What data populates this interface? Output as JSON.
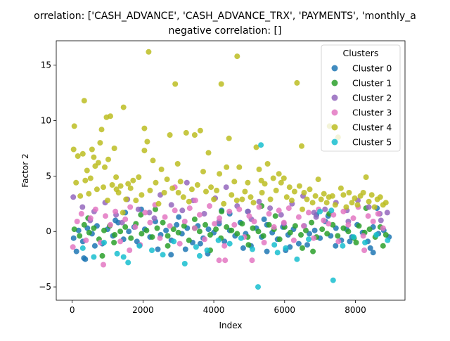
{
  "chart_data": {
    "type": "scatter",
    "title_line1": "orrelation: ['CASH_ADVANCE', 'CASH_ADVANCE_TRX', 'PAYMENTS', 'monthly_a",
    "title_line2": "negative correlation: []",
    "xlabel": "Index",
    "ylabel": "Factor 2",
    "xlim": [
      -450,
      9400
    ],
    "ylim": [
      -6.2,
      17.2
    ],
    "xticks": [
      0,
      2000,
      4000,
      6000,
      8000
    ],
    "yticks": [
      -5,
      0,
      5,
      10,
      15
    ],
    "grid": false,
    "legend": {
      "title": "Clusters",
      "placement": "top-right",
      "entries": [
        "Cluster 0",
        "Cluster 1",
        "Cluster 2",
        "Cluster 3",
        "Cluster 4",
        "Cluster 5"
      ]
    },
    "colors": {
      "Cluster 0": "#1f77b4",
      "Cluster 1": "#2ca02c",
      "Cluster 2": "#9467bd",
      "Cluster 3": "#e377c2",
      "Cluster 4": "#bcbd22",
      "Cluster 5": "#17becf"
    },
    "series": [
      {
        "name": "Cluster 0",
        "x": [
          40,
          180,
          300,
          430,
          560,
          700,
          850,
          1000,
          1150,
          1300,
          1450,
          1600,
          1750,
          1900,
          2050,
          2200,
          2350,
          2500,
          2650,
          2800,
          2950,
          3100,
          3250,
          3400,
          3550,
          3700,
          3850,
          4000,
          4150,
          4300,
          4450,
          4600,
          4750,
          4900,
          5050,
          5200,
          5350,
          5500,
          5650,
          5800,
          5950,
          6100,
          6250,
          6400,
          6550,
          6700,
          6850,
          7000,
          7150,
          7300,
          7450,
          7600,
          7750,
          7900,
          8050,
          8200,
          8350,
          8500,
          8650,
          8800,
          8950,
          120,
          640,
          1220,
          1830,
          2420,
          3010,
          3620,
          4220,
          4830,
          5420,
          6030,
          6640,
          7230,
          7840,
          8420,
          330,
          1500,
          2790,
          3830,
          4960,
          6150,
          7440,
          8610,
          370,
          1950,
          3200,
          4450,
          5500,
          6900,
          8500
        ],
        "y": [
          -0.6,
          0.1,
          -0.9,
          0.3,
          -0.2,
          0.5,
          -1.1,
          0.2,
          -0.4,
          0.8,
          -0.7,
          0.0,
          0.4,
          -1.2,
          0.2,
          -0.5,
          0.9,
          -0.3,
          0.1,
          -0.8,
          0.6,
          -0.2,
          0.3,
          -1.0,
          0.5,
          -0.6,
          0.2,
          -0.1,
          0.7,
          -0.9,
          0.1,
          -0.4,
          0.8,
          -0.2,
          -1.3,
          0.3,
          -0.5,
          0.6,
          -0.1,
          -0.7,
          0.4,
          -0.3,
          0.2,
          -1.1,
          0.5,
          -0.2,
          0.1,
          -0.6,
          0.9,
          -0.4,
          0.3,
          -0.8,
          0.2,
          -0.5,
          0.6,
          -0.1,
          -0.9,
          0.4,
          -0.2,
          0.1,
          -0.5,
          -1.8,
          -1.3,
          1.0,
          -0.9,
          -1.6,
          1.3,
          -1.1,
          1.9,
          -1.5,
          1.1,
          -1.7,
          -1.2,
          1.4,
          -0.9,
          -1.5,
          -2.4,
          1.7,
          -2.1,
          -2.0,
          1.8,
          -1.4,
          -1.3,
          2.1,
          -2.5,
          2.0,
          -1.6,
          1.6,
          -1.8,
          1.5,
          -1.9
        ]
      },
      {
        "name": "Cluster 1",
        "x": [
          60,
          210,
          340,
          480,
          610,
          760,
          900,
          1060,
          1200,
          1360,
          1500,
          1660,
          1800,
          1960,
          2100,
          2260,
          2400,
          2560,
          2700,
          2860,
          3000,
          3160,
          3300,
          3460,
          3600,
          3760,
          3900,
          4060,
          4200,
          4360,
          4500,
          4660,
          4800,
          4960,
          5100,
          5260,
          5400,
          5560,
          5700,
          5860,
          6000,
          6160,
          6300,
          6460,
          6600,
          6760,
          6900,
          7060,
          7200,
          7360,
          7500,
          7660,
          7800,
          7960,
          8100,
          8260,
          8400,
          8560,
          8700,
          8860,
          450,
          1180,
          1940,
          2700,
          3460,
          4220,
          4980,
          5740,
          6500,
          7260,
          8020,
          8780,
          850,
          2350,
          3900,
          5350,
          6800,
          8300
        ],
        "y": [
          0.2,
          -0.4,
          0.6,
          -0.1,
          0.3,
          -0.7,
          0.1,
          0.5,
          -0.3,
          0.0,
          0.4,
          -0.6,
          0.7,
          -0.2,
          0.1,
          -0.5,
          0.3,
          0.8,
          -0.4,
          0.2,
          -0.1,
          0.5,
          -0.8,
          0.3,
          0.0,
          0.6,
          -0.3,
          0.2,
          -0.6,
          0.4,
          0.1,
          -0.2,
          0.7,
          -0.5,
          0.3,
          0.0,
          -0.4,
          0.6,
          0.2,
          -0.7,
          0.4,
          -0.1,
          0.5,
          -0.3,
          0.1,
          0.8,
          -0.5,
          0.2,
          -0.2,
          0.6,
          -0.4,
          0.3,
          0.0,
          -0.6,
          0.5,
          -0.1,
          0.2,
          -0.5,
          0.4,
          -0.3,
          1.2,
          -1.0,
          1.5,
          -1.3,
          1.1,
          1.8,
          -1.2,
          1.4,
          -1.5,
          1.6,
          -1.0,
          -1.3,
          -2.2,
          2.0,
          -1.7,
          2.3,
          -1.8,
          2.1
        ]
      },
      {
        "name": "Cluster 2",
        "x": [
          30,
          290,
          620,
          930,
          1240,
          1560,
          1870,
          2180,
          2490,
          2800,
          3110,
          3420,
          3730,
          4040,
          4350,
          4660,
          4970,
          5280,
          5590,
          5900,
          6210,
          6520,
          6830,
          7140,
          7450,
          7760,
          8070,
          8380,
          8690,
          8900,
          510,
          1410,
          2320,
          3240,
          4150,
          5060,
          5980,
          6890,
          7800,
          8720
        ],
        "y": [
          3.1,
          2.2,
          1.8,
          2.6,
          1.5,
          2.9,
          2.0,
          1.7,
          3.3,
          2.4,
          1.9,
          2.8,
          1.6,
          3.0,
          4.0,
          2.3,
          1.8,
          2.7,
          2.1,
          1.5,
          2.5,
          3.2,
          1.7,
          2.0,
          2.6,
          1.9,
          2.8,
          2.2,
          1.6,
          1.7,
          1.0,
          0.8,
          1.2,
          4.4,
          0.9,
          1.1,
          0.7,
          1.3,
          0.9,
          1.0
        ]
      },
      {
        "name": "Cluster 3",
        "x": [
          20,
          140,
          260,
          390,
          520,
          660,
          800,
          940,
          1080,
          1220,
          1360,
          1500,
          1640,
          1780,
          1920,
          2060,
          2200,
          2340,
          2480,
          2620,
          2760,
          2900,
          3040,
          3180,
          3320,
          3460,
          3600,
          3740,
          3880,
          4020,
          4160,
          4300,
          4440,
          4580,
          4720,
          4860,
          5000,
          5140,
          5280,
          5420,
          5560,
          5700,
          5840,
          5980,
          6120,
          6260,
          6400,
          6540,
          6680,
          6820,
          6960,
          7100,
          7240,
          7380,
          7520,
          7660,
          7800,
          7940,
          8080,
          8220,
          8360,
          8500,
          8640,
          8780,
          880,
          1620,
          4150,
          4320,
          5080,
          8250,
          2900,
          3480
        ],
        "y": [
          -1.4,
          0.9,
          1.6,
          -0.8,
          1.2,
          2.0,
          -1.0,
          1.4,
          0.6,
          1.8,
          -0.9,
          1.1,
          2.2,
          0.4,
          -1.2,
          1.7,
          0.8,
          2.4,
          -0.6,
          1.3,
          0.5,
          1.9,
          -1.1,
          0.9,
          2.1,
          0.3,
          1.5,
          -0.7,
          2.3,
          0.7,
          1.2,
          -1.3,
          1.8,
          0.6,
          2.0,
          -0.5,
          1.4,
          0.9,
          2.2,
          -1.0,
          1.6,
          0.4,
          1.9,
          0.8,
          2.1,
          -0.8,
          1.3,
          0.5,
          1.7,
          -0.6,
          2.0,
          1.0,
          0.7,
          1.5,
          -0.9,
          1.8,
          0.6,
          1.2,
          2.2,
          -0.4,
          1.4,
          0.9,
          1.6,
          0.3,
          -3.0,
          -1.7,
          -2.6,
          -2.6,
          -2.6,
          -1.7,
          4.0,
          2.8
        ]
      },
      {
        "name": "Cluster 4",
        "x": [
          40,
          60,
          110,
          160,
          230,
          300,
          340,
          370,
          420,
          470,
          520,
          560,
          610,
          650,
          700,
          740,
          790,
          830,
          880,
          920,
          970,
          1020,
          1080,
          1130,
          1190,
          1250,
          1310,
          1370,
          1450,
          1520,
          1580,
          1650,
          1720,
          1800,
          1880,
          1960,
          2040,
          2120,
          2160,
          2200,
          2280,
          2360,
          2440,
          2520,
          2600,
          2680,
          2760,
          2830,
          2910,
          2980,
          3060,
          3140,
          3220,
          3300,
          3380,
          3460,
          3540,
          3620,
          3700,
          3780,
          3850,
          3920,
          4000,
          4080,
          4160,
          4210,
          4280,
          4360,
          4430,
          4500,
          4580,
          4660,
          4720,
          4800,
          4880,
          4960,
          5040,
          5120,
          5200,
          5280,
          5360,
          5440,
          5520,
          5600,
          5680,
          5760,
          5840,
          5900,
          5980,
          6060,
          6140,
          6200,
          6280,
          6350,
          6420,
          6480,
          6550,
          6630,
          6710,
          6790,
          6870,
          6950,
          7030,
          7110,
          7190,
          7270,
          7350,
          7430,
          7510,
          7590,
          7660,
          7740,
          7820,
          7900,
          7980,
          8060,
          8140,
          8220,
          8300,
          8380,
          8460,
          8540,
          8620,
          8700,
          8780,
          8860,
          2040,
          5340,
          6500,
          7250,
          1000,
          3000,
          4650,
          1430,
          1240
        ],
        "y": [
          7.4,
          9.5,
          4.4,
          6.8,
          3.2,
          7.0,
          11.8,
          4.6,
          5.5,
          3.4,
          4.8,
          7.4,
          6.7,
          5.9,
          3.8,
          6.2,
          8.0,
          9.2,
          4.0,
          5.8,
          10.3,
          6.5,
          10.4,
          4.2,
          7.5,
          3.8,
          3.5,
          4.1,
          11.2,
          2.9,
          4.3,
          3.9,
          4.6,
          2.8,
          4.9,
          3.3,
          7.3,
          8.1,
          16.2,
          3.7,
          6.4,
          4.4,
          2.5,
          5.6,
          3.5,
          4.7,
          8.7,
          3.9,
          13.3,
          6.1,
          4.5,
          3.1,
          8.9,
          2.7,
          3.8,
          8.7,
          4.2,
          9.1,
          5.4,
          3.6,
          7.1,
          4.0,
          2.9,
          3.7,
          5.2,
          13.3,
          2.5,
          5.8,
          8.4,
          3.3,
          4.5,
          15.8,
          5.8,
          2.9,
          3.6,
          4.4,
          3.1,
          2.6,
          7.6,
          5.6,
          3.5,
          4.3,
          6.1,
          2.9,
          4.8,
          3.7,
          5.2,
          4.4,
          4.8,
          3.1,
          4.0,
          2.8,
          3.6,
          13.4,
          4.1,
          7.7,
          3.5,
          2.9,
          3.8,
          2.6,
          3.2,
          4.7,
          2.9,
          3.4,
          2.6,
          9.5,
          3.2,
          2.4,
          8.5,
          3.9,
          3.3,
          2.2,
          3.5,
          2.6,
          3.0,
          2.4,
          3.2,
          3.5,
          4.9,
          2.7,
          3.3,
          2.2,
          2.9,
          3.1,
          2.4,
          2.6,
          9.3,
          4.6,
          2.0,
          3.1,
          2.8,
          3.5,
          2.8,
          1.7,
          4.9
        ]
      },
      {
        "name": "Cluster 5",
        "x": [
          300,
          610,
          900,
          1270,
          1580,
          1900,
          2250,
          2560,
          2870,
          3180,
          3500,
          3810,
          4130,
          4450,
          4770,
          5090,
          5250,
          5330,
          5710,
          6030,
          6350,
          6680,
          7000,
          7320,
          7370,
          7640,
          7950,
          8270,
          8590,
          8910,
          1450,
          3600,
          5800
        ],
        "y": [
          -1.5,
          -2.3,
          -1.0,
          -2.0,
          -2.8,
          -1.3,
          -1.7,
          -2.1,
          -0.9,
          -2.9,
          -1.4,
          -1.7,
          -0.8,
          -1.1,
          -0.6,
          -1.6,
          -5.0,
          7.8,
          -1.2,
          -1.5,
          -2.5,
          -0.7,
          1.8,
          1.9,
          -4.4,
          -1.3,
          -0.5,
          -1.0,
          -0.3,
          -0.8,
          -2.3,
          -2.2,
          -1.9
        ]
      }
    ]
  }
}
